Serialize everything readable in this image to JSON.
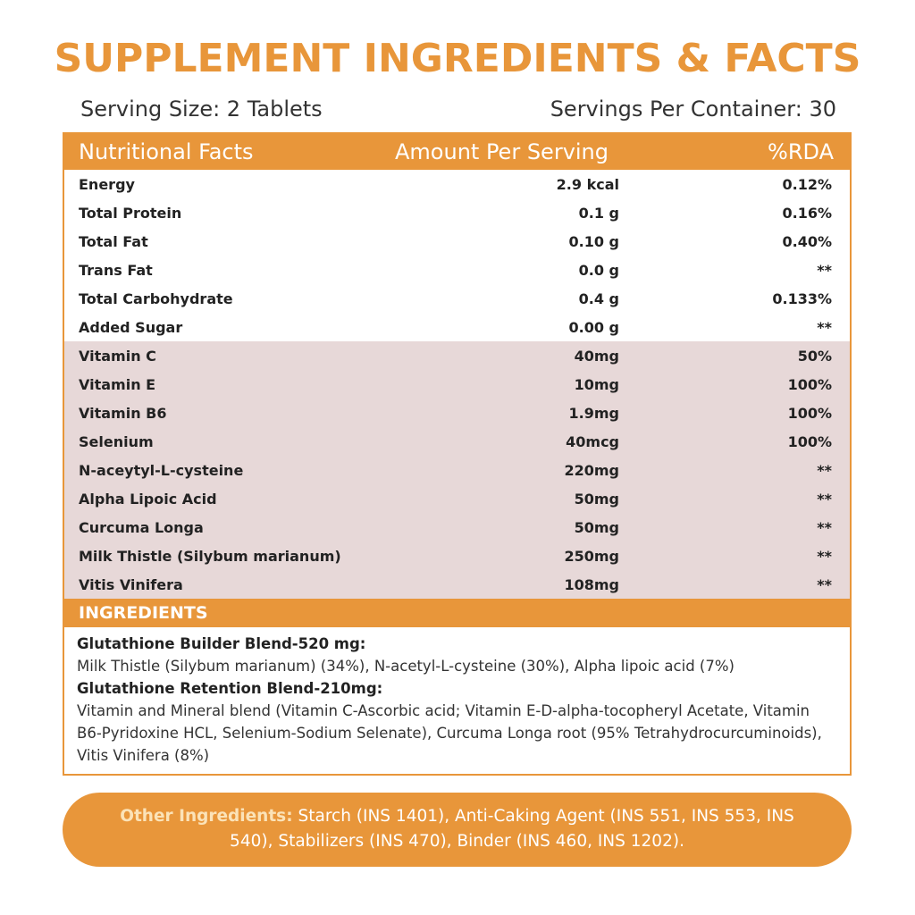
{
  "header": {
    "title": "SUPPLEMENT INGREDIENTS & FACTS",
    "serving_size": "Serving Size: 2 Tablets",
    "servings_per_container": "Servings Per Container: 30"
  },
  "table": {
    "columns": [
      "Nutritional Facts",
      "Amount Per Serving",
      "%RDA"
    ],
    "rows": [
      [
        "Energy",
        "2.9 kcal",
        "0.12%"
      ],
      [
        "Total Protein",
        "0.1 g",
        "0.16%"
      ],
      [
        "Total Fat",
        "0.10 g",
        "0.40%"
      ],
      [
        "Trans Fat",
        "0.0 g",
        "**"
      ],
      [
        "Total Carbohydrate",
        "0.4 g",
        "0.133%"
      ],
      [
        "Added Sugar",
        "0.00 g",
        "**"
      ],
      [
        "Vitamin C",
        "40mg",
        "50%"
      ],
      [
        "Vitamin E",
        "10mg",
        "100%"
      ],
      [
        "Vitamin B6",
        "1.9mg",
        "100%"
      ],
      [
        "Selenium",
        "40mcg",
        "100%"
      ],
      [
        "N-aceytyl-L-cysteine",
        "220mg",
        "**"
      ],
      [
        "Alpha Lipoic Acid",
        "50mg",
        "**"
      ],
      [
        "Curcuma Longa",
        "50mg",
        "**"
      ],
      [
        "Milk Thistle (Silybum marianum)",
        "250mg",
        "**"
      ],
      [
        "Vitis Vinifera",
        "108mg",
        "**"
      ]
    ]
  },
  "ingredients": {
    "heading": "INGREDIENTS",
    "blends": [
      {
        "name": "Glutathione Builder Blend-520 mg:",
        "text": "Milk Thistle (Silybum marianum) (34%), N-acetyl-L-cysteine (30%), Alpha lipoic acid (7%)"
      },
      {
        "name": "Glutathione Retention Blend-210mg:",
        "text": "Vitamin and Mineral blend (Vitamin C-Ascorbic acid; Vitamin E-D-alpha-tocopheryl Acetate, Vitamin B6-Pyridoxine HCL, Selenium-Sodium Selenate), Curcuma Longa root (95% Tetrahydrocurcuminoids), Vitis Vinifera (8%)"
      }
    ]
  },
  "other_ingredients": {
    "label": "Other Ingredients:",
    "text": "Starch (INS 1401), Anti-Caking Agent (INS 551, INS 553, INS 540), Stabilizers (INS 470), Binder (INS 460, INS 1202)."
  }
}
